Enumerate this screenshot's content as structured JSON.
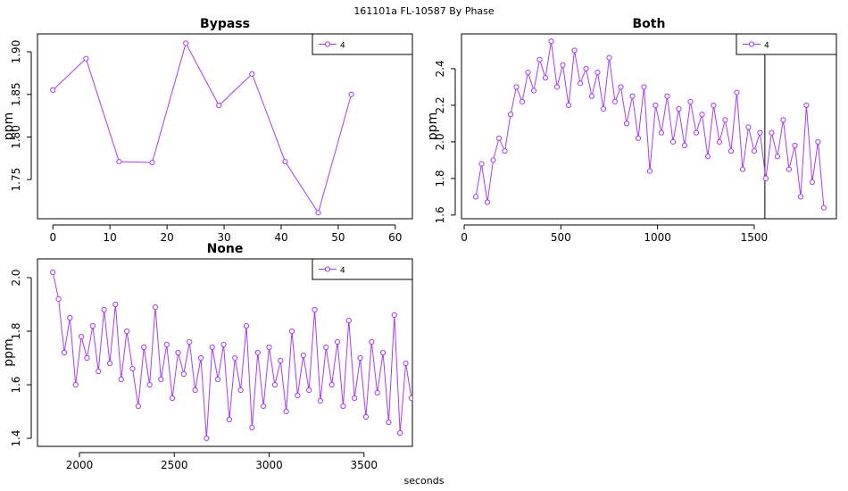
{
  "title": "161101a   FL-10587   By Phase",
  "x_label": "seconds",
  "chart_data": [
    {
      "type": "line",
      "title": "Bypass",
      "y_label": "ppm",
      "legend": "topright",
      "x": [
        0,
        5.8,
        11.6,
        17.4,
        23.3,
        29.1,
        34.9,
        40.7,
        46.5,
        52.3
      ],
      "series": [
        {
          "name": "4",
          "color": "#a83cf0",
          "values": [
            1.855,
            1.892,
            1.771,
            1.77,
            1.91,
            1.837,
            1.874,
            1.771,
            1.711,
            1.85
          ]
        }
      ],
      "xlim": [
        -2.7,
        63
      ],
      "ylim": [
        1.704,
        1.921
      ],
      "xticks": [
        0,
        10,
        20,
        30,
        40,
        50,
        60
      ],
      "yticks": [
        1.75,
        {
          "value": 1.8,
          "label": "1.80"
        },
        1.85,
        {
          "value": 1.9,
          "label": "1.90"
        }
      ]
    },
    {
      "type": "line",
      "title": "Both",
      "y_label": "ppm",
      "legend": "topright",
      "vline": 1555,
      "x": [
        60,
        90,
        120,
        150,
        180,
        210,
        240,
        270,
        300,
        330,
        360,
        390,
        420,
        450,
        480,
        510,
        540,
        570,
        600,
        630,
        660,
        690,
        720,
        750,
        780,
        810,
        840,
        870,
        900,
        930,
        960,
        990,
        1020,
        1050,
        1080,
        1110,
        1140,
        1170,
        1200,
        1230,
        1260,
        1290,
        1320,
        1350,
        1380,
        1410,
        1440,
        1470,
        1500,
        1530,
        1560,
        1590,
        1620,
        1650,
        1680,
        1710,
        1740,
        1770,
        1800,
        1830,
        1860
      ],
      "series": [
        {
          "name": "4",
          "color": "#a83cf0",
          "values": [
            1.7,
            1.88,
            1.67,
            1.9,
            2.02,
            1.95,
            2.15,
            2.3,
            2.22,
            2.38,
            2.28,
            2.45,
            2.35,
            2.55,
            2.3,
            2.42,
            2.2,
            2.5,
            2.32,
            2.4,
            2.25,
            2.38,
            2.18,
            2.46,
            2.22,
            2.3,
            2.1,
            2.25,
            2.02,
            2.3,
            1.84,
            2.2,
            2.05,
            2.25,
            2.0,
            2.18,
            1.98,
            2.22,
            2.05,
            2.15,
            1.92,
            2.2,
            2.0,
            2.12,
            1.95,
            2.27,
            1.85,
            2.08,
            1.95,
            2.05,
            1.8,
            2.05,
            1.92,
            2.12,
            1.85,
            1.98,
            1.7,
            2.2,
            1.78,
            2.0,
            1.64
          ]
        }
      ],
      "xlim": [
        -14,
        1925
      ],
      "ylim": [
        1.58,
        2.59
      ],
      "xticks": [
        0,
        500,
        1000,
        1500
      ],
      "yticks": [
        1.6,
        1.8,
        {
          "value": 2.0,
          "label": "2.0"
        },
        2.2,
        2.4
      ]
    },
    {
      "type": "line",
      "title": "None",
      "y_label": "ppm",
      "legend": "topright",
      "x": [
        1860,
        1890,
        1920,
        1950,
        1980,
        2010,
        2040,
        2070,
        2100,
        2130,
        2160,
        2190,
        2220,
        2250,
        2280,
        2310,
        2340,
        2370,
        2400,
        2430,
        2460,
        2490,
        2520,
        2550,
        2580,
        2610,
        2640,
        2670,
        2700,
        2730,
        2760,
        2790,
        2820,
        2850,
        2880,
        2910,
        2940,
        2970,
        3000,
        3030,
        3060,
        3090,
        3120,
        3150,
        3180,
        3210,
        3240,
        3270,
        3300,
        3330,
        3360,
        3390,
        3420,
        3450,
        3480,
        3510,
        3540,
        3570,
        3600,
        3630,
        3660,
        3690,
        3720,
        3750
      ],
      "series": [
        {
          "name": "4",
          "color": "#a83cf0",
          "values": [
            2.02,
            1.92,
            1.72,
            1.85,
            1.6,
            1.78,
            1.7,
            1.82,
            1.65,
            1.88,
            1.68,
            1.9,
            1.62,
            1.8,
            1.66,
            1.52,
            1.74,
            1.6,
            1.89,
            1.62,
            1.75,
            1.55,
            1.72,
            1.64,
            1.76,
            1.58,
            1.7,
            1.4,
            1.74,
            1.62,
            1.75,
            1.47,
            1.7,
            1.58,
            1.82,
            1.44,
            1.72,
            1.52,
            1.74,
            1.6,
            1.69,
            1.5,
            1.8,
            1.56,
            1.71,
            1.58,
            1.88,
            1.54,
            1.74,
            1.6,
            1.76,
            1.52,
            1.84,
            1.55,
            1.7,
            1.48,
            1.76,
            1.57,
            1.72,
            1.46,
            1.86,
            1.42,
            1.68,
            1.55
          ]
        }
      ],
      "xlim": [
        1779,
        3755
      ],
      "ylim": [
        1.37,
        2.07
      ],
      "xticks": [
        2000,
        2500,
        3000,
        3500
      ],
      "yticks": [
        1.4,
        1.6,
        1.8,
        {
          "value": 2.0,
          "label": "2.0"
        }
      ]
    }
  ]
}
